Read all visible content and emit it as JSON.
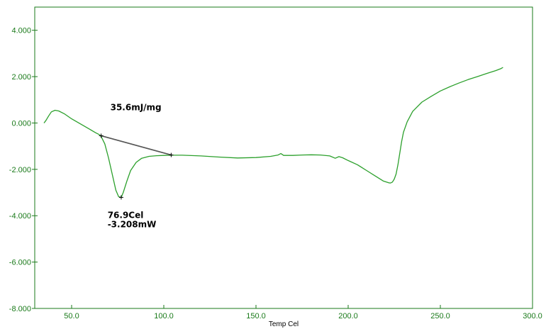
{
  "chart_data": {
    "type": "line",
    "xlabel": "Temp Cel",
    "ylabel": "",
    "xlim": [
      30,
      300
    ],
    "ylim": [
      -8,
      5
    ],
    "x_ticks": [
      {
        "value": 50,
        "label": "50.0"
      },
      {
        "value": 100,
        "label": "100.0"
      },
      {
        "value": 150,
        "label": "150.0"
      },
      {
        "value": 200,
        "label": "200.0"
      },
      {
        "value": 250,
        "label": "250.0"
      },
      {
        "value": 300,
        "label": "300.0"
      }
    ],
    "y_ticks": [
      {
        "value": 4,
        "label": "4.000"
      },
      {
        "value": 2,
        "label": "2.000"
      },
      {
        "value": 0,
        "label": "0.000"
      },
      {
        "value": -2,
        "label": "-2.000"
      },
      {
        "value": -4,
        "label": "-4.000"
      },
      {
        "value": -6,
        "label": "-6.000"
      },
      {
        "value": -8,
        "label": "-8.000"
      }
    ],
    "grid": false,
    "series": [
      {
        "color": "#2ca02c",
        "x": [
          35,
          36,
          37.5,
          39,
          41,
          43,
          46,
          50,
          55,
          60,
          63,
          65,
          66,
          68,
          70,
          72,
          74,
          75.5,
          76.9,
          78,
          80,
          82,
          85,
          88,
          92,
          96,
          100,
          104,
          110,
          120,
          130,
          140,
          150,
          158,
          162,
          163.5,
          165,
          170,
          175,
          180,
          185,
          190,
          193,
          195,
          197,
          200,
          205,
          210,
          215,
          219,
          222,
          223,
          224,
          225,
          226,
          227,
          228,
          229,
          230,
          232,
          235,
          240,
          245,
          250,
          255,
          260,
          265,
          270,
          275,
          280,
          283,
          284
        ],
        "y": [
          0,
          0.1,
          0.3,
          0.48,
          0.55,
          0.52,
          0.4,
          0.18,
          -0.05,
          -0.28,
          -0.42,
          -0.5,
          -0.58,
          -0.9,
          -1.5,
          -2.2,
          -2.9,
          -3.18,
          -3.21,
          -3.0,
          -2.5,
          -2.05,
          -1.7,
          -1.52,
          -1.44,
          -1.41,
          -1.4,
          -1.39,
          -1.39,
          -1.42,
          -1.47,
          -1.51,
          -1.49,
          -1.44,
          -1.38,
          -1.32,
          -1.4,
          -1.4,
          -1.38,
          -1.37,
          -1.38,
          -1.42,
          -1.52,
          -1.45,
          -1.5,
          -1.62,
          -1.8,
          -2.05,
          -2.3,
          -2.5,
          -2.58,
          -2.59,
          -2.55,
          -2.42,
          -2.2,
          -1.8,
          -1.3,
          -0.8,
          -0.4,
          0.05,
          0.5,
          0.9,
          1.15,
          1.38,
          1.56,
          1.72,
          1.87,
          2.0,
          2.13,
          2.26,
          2.35,
          2.4
        ]
      }
    ],
    "baseline": {
      "x": [
        66,
        104
      ],
      "y": [
        -0.55,
        -1.38
      ]
    },
    "annotations": [
      {
        "text": "35.6mJ/mg",
        "x": 71,
        "y": 0.55
      },
      {
        "text": "76.9Cel",
        "x": 69.5,
        "y": -4.1
      },
      {
        "text": "-3.208mW",
        "x": 69.5,
        "y": -4.5
      }
    ],
    "marker_points": [
      {
        "x": 66,
        "y": -0.55
      },
      {
        "x": 76.9,
        "y": -3.21
      },
      {
        "x": 104,
        "y": -1.38
      }
    ]
  }
}
